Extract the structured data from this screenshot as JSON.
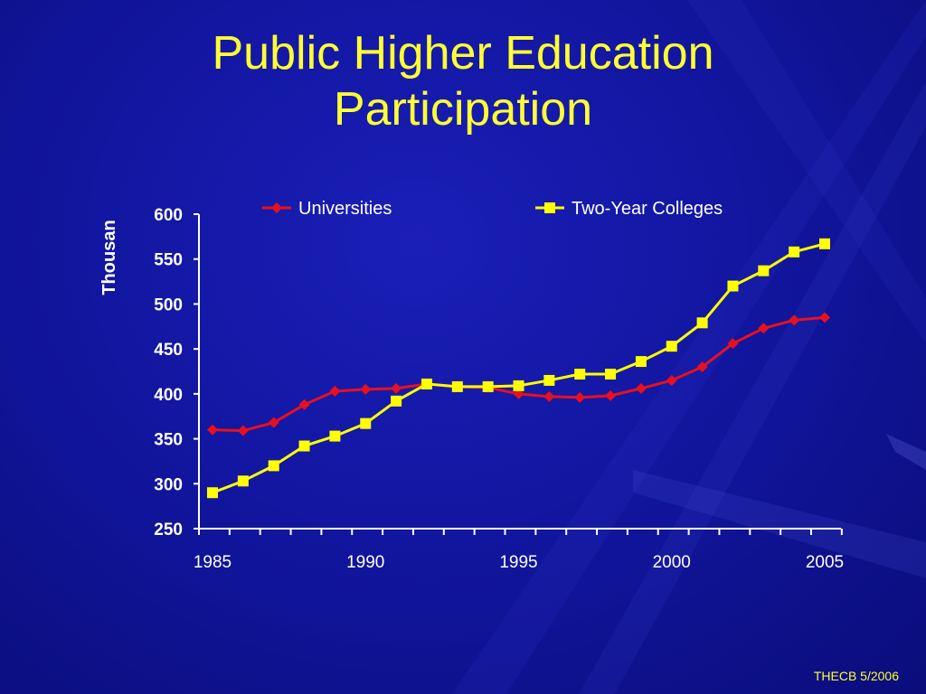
{
  "slide": {
    "title_line1": "Public Higher Education",
    "title_line2": "Participation",
    "footer": "THECB 5/2006"
  },
  "colors": {
    "title": "#ffff33",
    "axis_text": "#ffffff",
    "universities": "#e8101c",
    "colleges": "#ffff00"
  },
  "chart_data": {
    "type": "line",
    "title": "",
    "xlabel": "",
    "ylabel": "Thousan",
    "xlim": [
      1985,
      2005
    ],
    "ylim": [
      250,
      600
    ],
    "yticks": [
      250,
      300,
      350,
      400,
      450,
      500,
      550,
      600
    ],
    "xticks": [
      1985,
      1990,
      1995,
      2000,
      2005
    ],
    "legend_position": "top",
    "x": [
      1985,
      1986,
      1987,
      1988,
      1989,
      1990,
      1991,
      1992,
      1993,
      1994,
      1995,
      1996,
      1997,
      1998,
      1999,
      2000,
      2001,
      2002,
      2003,
      2004,
      2005
    ],
    "series": [
      {
        "name": "Universities",
        "marker": "diamond",
        "values": [
          360,
          359,
          368,
          388,
          403,
          405,
          406,
          411,
          408,
          407,
          400,
          397,
          396,
          398,
          406,
          415,
          430,
          456,
          473,
          482,
          485
        ]
      },
      {
        "name": "Two-Year Colleges",
        "marker": "square",
        "values": [
          290,
          303,
          320,
          342,
          353,
          367,
          392,
          411,
          408,
          408,
          409,
          415,
          422,
          422,
          436,
          453,
          479,
          520,
          537,
          558,
          567
        ]
      }
    ]
  }
}
